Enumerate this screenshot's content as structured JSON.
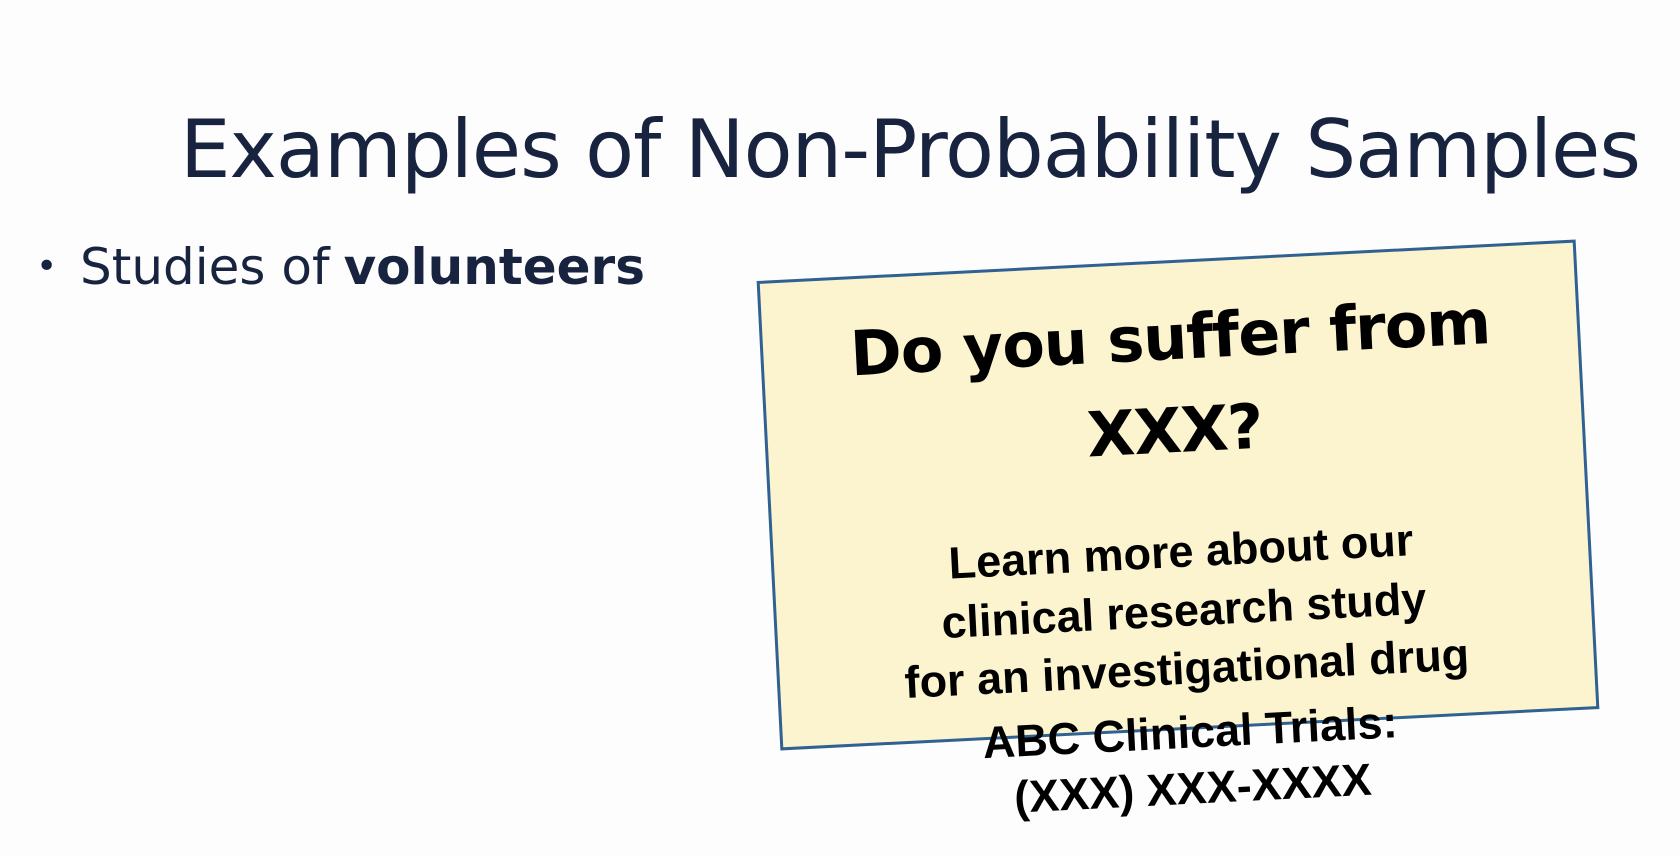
{
  "slide": {
    "title": "Examples of Non-Probability Samples",
    "bullets": [
      {
        "marker": "•",
        "text": "Studies of",
        "bold_text": "volunteers"
      }
    ]
  },
  "flyer": {
    "headline_lines": [
      "Do you suffer from",
      "XXX?"
    ],
    "body_lines": [
      "Learn more about our",
      "clinical research study",
      "for an investigational drug"
    ],
    "contact_lines": [
      "ABC Clinical Trials:",
      "(XXX) XXX-XXXX"
    ],
    "colors": {
      "background": "#fbf4cf",
      "border": "#2f6293",
      "title_text": "#17233f"
    }
  }
}
